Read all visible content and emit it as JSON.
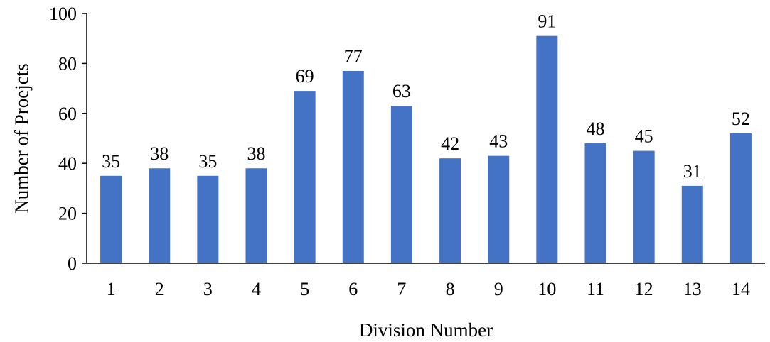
{
  "chart_data": {
    "type": "bar",
    "title": "",
    "xlabel": "Division Number",
    "ylabel": "Number of Proejcts",
    "categories": [
      "1",
      "2",
      "3",
      "4",
      "5",
      "6",
      "7",
      "8",
      "9",
      "10",
      "11",
      "12",
      "13",
      "14"
    ],
    "values": [
      35,
      38,
      35,
      38,
      69,
      77,
      63,
      42,
      43,
      91,
      48,
      45,
      31,
      52
    ],
    "ylim": [
      0,
      100
    ],
    "yticks": [
      0,
      20,
      40,
      60,
      80,
      100
    ],
    "grid": false,
    "legend": "none",
    "data_labels": true,
    "colors": {
      "bar": "#4472C4"
    }
  }
}
